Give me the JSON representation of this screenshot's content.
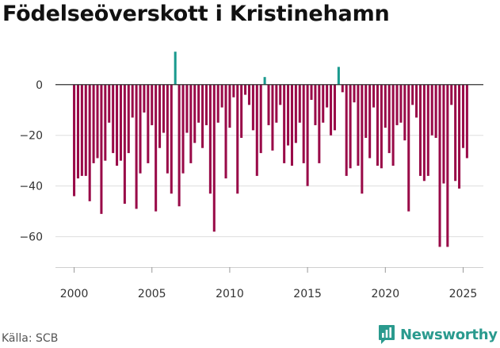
{
  "title": "Födelseöverskott i Kristinehamn",
  "source": "Källa: SCB",
  "brand": "Newsworthy",
  "colors": {
    "negative": "#990a48",
    "positive": "#1a9a8e",
    "brand": "#2a9a8e",
    "grid": "#dddddd",
    "zero": "#333333"
  },
  "chart_data": {
    "type": "bar",
    "title": "Födelseöverskott i Kristinehamn",
    "xlabel": "",
    "ylabel": "",
    "grid": true,
    "ylim": [
      -72,
      14
    ],
    "xlim": [
      1998.8,
      2026.3
    ],
    "y_ticks": [
      0,
      -20,
      -40,
      -60
    ],
    "y_tick_labels": [
      "0",
      "−20",
      "−40",
      "−60"
    ],
    "x_ticks": [
      2000,
      2005,
      2010,
      2015,
      2020,
      2025
    ],
    "x_tick_labels": [
      "2000",
      "2005",
      "2010",
      "2015",
      "2020",
      "2025"
    ],
    "periods_per_year": 4,
    "start_period": "2000 Q1",
    "values": [
      -44,
      -37,
      -36,
      -36,
      -46,
      -31,
      -29,
      -51,
      -30,
      -15,
      -27,
      -32,
      -30,
      -47,
      -27,
      -13,
      -49,
      -35,
      -11,
      -31,
      -16,
      -50,
      -25,
      -19,
      -35,
      -43,
      13,
      -48,
      -35,
      -19,
      -31,
      -23,
      -15,
      -25,
      -16,
      -43,
      -58,
      -15,
      -9,
      -37,
      -17,
      -5,
      -43,
      -21,
      -4,
      -8,
      -18,
      -36,
      -27,
      3,
      -16,
      -26,
      -15,
      -8,
      -31,
      -24,
      -32,
      -23,
      -15,
      -31,
      -40,
      -6,
      -16,
      -31,
      -15,
      -9,
      -20,
      -18,
      7,
      -3,
      -36,
      -33,
      -7,
      -32,
      -43,
      -21,
      -29,
      -9,
      -32,
      -33,
      -17,
      -27,
      -32,
      -16,
      -15,
      -22,
      -50,
      -8,
      -13,
      -36,
      -38,
      -36,
      -20,
      -21,
      -64,
      -39,
      -64,
      -8,
      -38,
      -41,
      -25,
      -29
    ]
  }
}
